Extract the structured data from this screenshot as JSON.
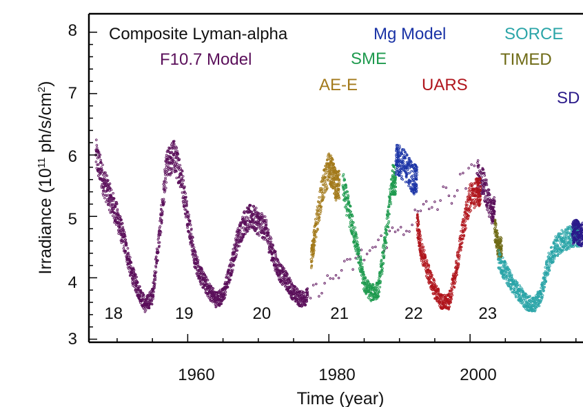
{
  "chart_data": {
    "type": "scatter",
    "xlabel": "Time (year)",
    "ylabel_main": "Irradiance (10",
    "ylabel_exp": "11",
    "ylabel_units": " ph/s/cm",
    "ylabel_sq": "2",
    "ylabel_close": ")",
    "xlim": [
      1946,
      2016
    ],
    "ylim": [
      2.95,
      8.3
    ],
    "xticks": [
      1960,
      1980,
      2000
    ],
    "yticks": [
      3,
      4,
      5,
      6,
      7,
      8
    ],
    "grid": false,
    "annotations": [
      {
        "text": "Composite Lyman-alpha",
        "color": "#111111"
      },
      {
        "text": "F10.7 Model",
        "color": "#5a0f5a"
      },
      {
        "text": "Mg Model",
        "color": "#1a33a6"
      },
      {
        "text": "SME",
        "color": "#1e9a4e"
      },
      {
        "text": "AE-E",
        "color": "#a37a1b"
      },
      {
        "text": "UARS",
        "color": "#b0151c"
      },
      {
        "text": "SORCE",
        "color": "#2ba5a8"
      },
      {
        "text": "TIMED",
        "color": "#6e6a15"
      },
      {
        "text": "SD",
        "color": "#2a1a8a"
      }
    ],
    "cycle_labels": [
      {
        "text": "18",
        "x": 1949.5
      },
      {
        "text": "19",
        "x": 1959.5
      },
      {
        "text": "20",
        "x": 1970.5
      },
      {
        "text": "21",
        "x": 1981.5
      },
      {
        "text": "22",
        "x": 1992
      },
      {
        "text": "23",
        "x": 2002.5
      }
    ],
    "series": [
      {
        "name": "F10.7 Model",
        "color": "#5a0f5a",
        "x": [
          1947,
          1948,
          1949,
          1950,
          1951,
          1952,
          1953,
          1954,
          1955,
          1956,
          1957,
          1958,
          1959,
          1960,
          1961,
          1962,
          1963,
          1964,
          1965,
          1966,
          1967,
          1968,
          1969,
          1970,
          1971,
          1972,
          1973,
          1974,
          1975,
          1976,
          1977,
          2001,
          2002,
          2003
        ],
        "y": [
          6.0,
          5.6,
          5.3,
          5.0,
          4.6,
          4.1,
          3.8,
          3.55,
          3.7,
          4.7,
          5.8,
          6.0,
          5.7,
          5.0,
          4.3,
          4.0,
          3.8,
          3.65,
          3.7,
          4.1,
          4.6,
          4.9,
          5.0,
          4.9,
          4.8,
          4.4,
          4.1,
          3.95,
          3.75,
          3.65,
          3.7,
          5.7,
          5.5,
          5.1
        ]
      },
      {
        "name": "AE-E",
        "color": "#a37a1b",
        "x": [
          1977.5,
          1978,
          1979,
          1980,
          1980.5,
          1981
        ],
        "y": [
          4.3,
          4.7,
          5.4,
          5.8,
          5.7,
          5.5
        ]
      },
      {
        "name": "SME",
        "color": "#1e9a4e",
        "x": [
          1982,
          1983,
          1984,
          1985,
          1986,
          1987,
          1988,
          1989
        ],
        "y": [
          5.5,
          5.0,
          4.5,
          3.9,
          3.75,
          3.8,
          4.6,
          5.6
        ]
      },
      {
        "name": "Mg Model",
        "color": "#1a33a6",
        "x": [
          1989.5,
          1990,
          1991,
          1992
        ],
        "y": [
          5.9,
          5.9,
          5.8,
          5.6
        ]
      },
      {
        "name": "UARS",
        "color": "#b0151c",
        "x": [
          1992.5,
          1993,
          1994,
          1995,
          1996,
          1997,
          1998,
          1999,
          2000,
          2001
        ],
        "y": [
          4.9,
          4.5,
          4.1,
          3.8,
          3.6,
          3.6,
          4.1,
          4.8,
          5.3,
          5.4
        ]
      },
      {
        "name": "TIMED",
        "color": "#6e6a15",
        "x": [
          2003.5,
          2004
        ],
        "y": [
          4.8,
          4.5
        ]
      },
      {
        "name": "SORCE",
        "color": "#2ba5a8",
        "x": [
          2004,
          2005,
          2006,
          2007,
          2008,
          2009,
          2010,
          2011,
          2012,
          2013,
          2014,
          2015
        ],
        "y": [
          4.3,
          4.1,
          3.9,
          3.75,
          3.6,
          3.55,
          3.7,
          4.2,
          4.5,
          4.6,
          4.65,
          4.7
        ]
      },
      {
        "name": "SD",
        "color": "#2a1a8a",
        "x": [
          2014.5,
          2015,
          2015.5
        ],
        "y": [
          4.7,
          4.8,
          4.7
        ]
      }
    ]
  }
}
